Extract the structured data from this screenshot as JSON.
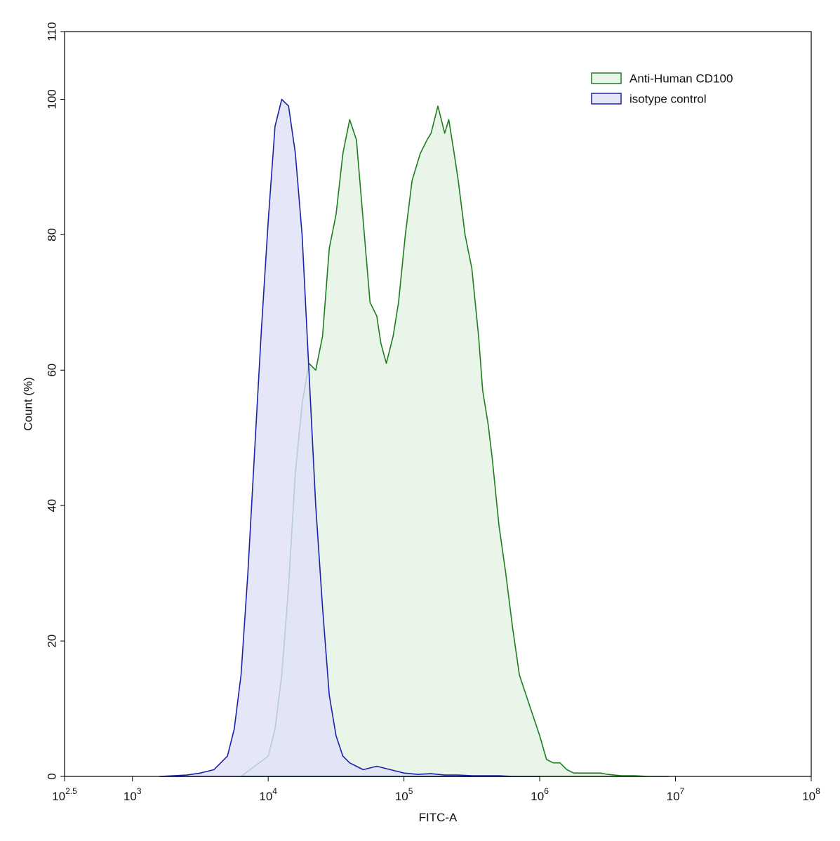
{
  "chart_data": {
    "type": "area",
    "xlabel": "FITC-A",
    "ylabel": "Count  (%)",
    "x_scale": "log10",
    "xlim": [
      2.5,
      8
    ],
    "ylim": [
      0,
      110
    ],
    "grid": false,
    "legend_position": "top-right",
    "x_ticks": [
      {
        "base": "10",
        "exp": "2.5",
        "value": 2.5
      },
      {
        "base": "10",
        "exp": "3",
        "value": 3
      },
      {
        "base": "10",
        "exp": "4",
        "value": 4
      },
      {
        "base": "10",
        "exp": "5",
        "value": 5
      },
      {
        "base": "10",
        "exp": "6",
        "value": 6
      },
      {
        "base": "10",
        "exp": "7",
        "value": 7
      },
      {
        "base": "10",
        "exp": "8",
        "value": 8
      }
    ],
    "y_ticks": [
      {
        "label": "0",
        "value": 0
      },
      {
        "label": "20",
        "value": 20
      },
      {
        "label": "40",
        "value": 40
      },
      {
        "label": "60",
        "value": 60
      },
      {
        "label": "80",
        "value": 80
      },
      {
        "label": "100",
        "value": 100
      },
      {
        "label": "110",
        "value": 110
      }
    ],
    "series": [
      {
        "name": "Anti-Human CD100",
        "stroke": "#1e7d1e",
        "fill": "#e6f3e6",
        "fill_opacity": 0.85,
        "x_log10": [
          3.8,
          3.9,
          4.0,
          4.05,
          4.1,
          4.15,
          4.2,
          4.25,
          4.3,
          4.35,
          4.4,
          4.45,
          4.5,
          4.55,
          4.6,
          4.65,
          4.7,
          4.75,
          4.8,
          4.83,
          4.87,
          4.92,
          4.96,
          5.01,
          5.06,
          5.12,
          5.17,
          5.2,
          5.25,
          5.3,
          5.33,
          5.37,
          5.4,
          5.45,
          5.5,
          5.55,
          5.58,
          5.62,
          5.65,
          5.7,
          5.75,
          5.8,
          5.85,
          5.9,
          6.0,
          6.05,
          6.1,
          6.15,
          6.2,
          6.25,
          6.3,
          6.35,
          6.4,
          6.45,
          6.5,
          6.55,
          6.6,
          6.65,
          6.7,
          6.8,
          6.9,
          6.95
        ],
        "y": [
          0,
          1.5,
          3,
          7,
          15,
          28,
          45,
          55,
          61,
          60,
          65,
          78,
          83,
          92,
          97,
          94,
          82,
          70,
          68,
          64,
          61,
          65,
          70,
          80,
          88,
          92,
          94,
          95,
          99,
          95,
          97,
          92,
          88,
          80,
          75,
          65,
          57,
          52,
          47,
          37,
          30,
          22,
          15,
          12,
          6,
          2.5,
          2,
          2,
          1,
          0.5,
          0.5,
          0.5,
          0.5,
          0.5,
          0.3,
          0.2,
          0.1,
          0.1,
          0.1,
          0,
          0,
          0
        ]
      },
      {
        "name": "isotype control",
        "stroke": "#1a22a8",
        "fill": "#dfe1f8",
        "fill_opacity": 0.8,
        "x_log10": [
          3.2,
          3.4,
          3.5,
          3.6,
          3.7,
          3.75,
          3.8,
          3.85,
          3.9,
          3.95,
          4.0,
          4.05,
          4.1,
          4.15,
          4.2,
          4.25,
          4.3,
          4.35,
          4.4,
          4.45,
          4.5,
          4.55,
          4.6,
          4.7,
          4.8,
          4.9,
          5.0,
          5.1,
          5.2,
          5.3,
          5.4,
          5.5,
          5.6,
          5.7,
          5.8,
          6.0
        ],
        "y": [
          0,
          0.2,
          0.5,
          1,
          3,
          7,
          15,
          30,
          48,
          66,
          82,
          96,
          100,
          99,
          92,
          80,
          60,
          40,
          25,
          12,
          6,
          3,
          2,
          1,
          1.5,
          1,
          0.5,
          0.3,
          0.4,
          0.2,
          0.2,
          0.1,
          0.1,
          0.1,
          0,
          0
        ]
      }
    ]
  }
}
